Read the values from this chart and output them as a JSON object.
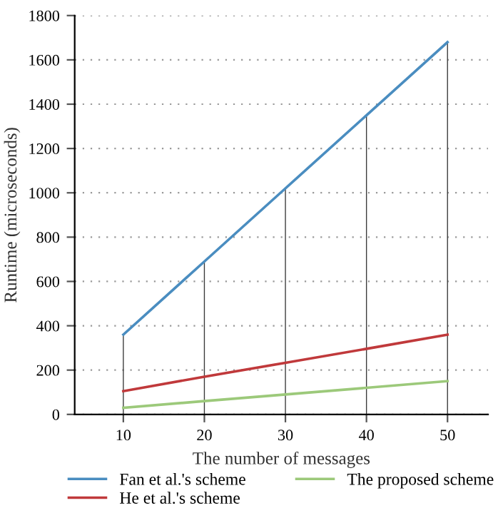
{
  "chart_data": {
    "type": "line",
    "xlabel": "The number of messages",
    "ylabel": "Runtime (microseconds)",
    "x": [
      10,
      20,
      30,
      40,
      50
    ],
    "series": [
      {
        "type": "bar",
        "color": "#3a3a3a",
        "values": [
          360,
          690,
          1020,
          1350,
          1680
        ]
      },
      {
        "name": "Fan et al.'s scheme",
        "color": "#4a8dc0",
        "values": [
          360,
          690,
          1020,
          1350,
          1680
        ]
      },
      {
        "name": "He et al.'s scheme",
        "color": "#c0393b",
        "values": [
          105,
          170,
          233,
          296,
          360
        ]
      },
      {
        "name": "The proposed scheme",
        "color": "#9cc97a",
        "values": [
          30,
          60,
          90,
          120,
          150
        ]
      }
    ],
    "xlim": [
      4,
      55
    ],
    "xticks": [
      10,
      20,
      30,
      40,
      50
    ],
    "ylim": [
      0,
      1800
    ],
    "yticks": [
      0,
      200,
      400,
      600,
      800,
      1000,
      1200,
      1400,
      1600,
      1800
    ],
    "grid": "y",
    "legend": "bottom",
    "line_style": "solid",
    "marker": "none"
  }
}
